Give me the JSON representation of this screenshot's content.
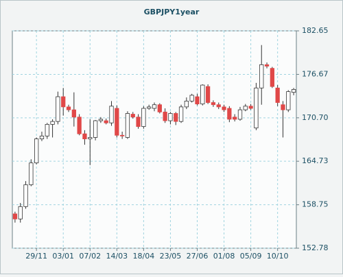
{
  "chart_data": {
    "type": "candlestick",
    "title": "GBPJPY1year",
    "categories": [
      null,
      null,
      null,
      null,
      "29/11",
      null,
      null,
      null,
      null,
      "03/01",
      null,
      null,
      null,
      null,
      "07/02",
      null,
      null,
      null,
      null,
      "14/03",
      null,
      null,
      null,
      null,
      "18/04",
      null,
      null,
      null,
      null,
      "23/05",
      null,
      null,
      null,
      null,
      "27/06",
      null,
      null,
      null,
      null,
      "01/08",
      null,
      null,
      null,
      null,
      "05/09",
      null,
      null,
      null,
      null,
      "10/10",
      null,
      null,
      null
    ],
    "series": [
      {
        "open": [
          157.5,
          156.8,
          158.5,
          161.5,
          164.5,
          167.8,
          168.2,
          169.8,
          170.2,
          173.6,
          172.2,
          171.8,
          170.8,
          168.5,
          167.8,
          168.0,
          170.3,
          170.3,
          170.0,
          172.0,
          168.3,
          168.0,
          171.2,
          170.8,
          169.5,
          172.0,
          172.0,
          172.5,
          171.5,
          170.3,
          171.3,
          170.2,
          172.2,
          173.0,
          173.6,
          172.6,
          175.0,
          172.8,
          172.5,
          172.2,
          172.0,
          170.8,
          170.5,
          171.8,
          172.3,
          169.3,
          174.8,
          178.0,
          177.5,
          174.8,
          172.5,
          171.8,
          174.2
        ],
        "high": [
          157.8,
          159.0,
          162.0,
          165.0,
          168.0,
          168.8,
          170.0,
          170.5,
          174.3,
          174.8,
          172.5,
          174.2,
          171.2,
          169.0,
          170.5,
          170.4,
          170.8,
          170.6,
          173.0,
          172.4,
          168.8,
          171.6,
          171.5,
          171.2,
          172.3,
          172.5,
          172.8,
          172.7,
          172.0,
          171.5,
          171.5,
          172.5,
          173.5,
          174.0,
          174.0,
          175.3,
          175.3,
          173.1,
          172.8,
          172.5,
          172.3,
          171.2,
          172.2,
          172.6,
          172.6,
          175.5,
          180.7,
          178.3,
          177.7,
          175.2,
          173.0,
          174.5,
          174.8
        ],
        "low": [
          156.3,
          156.3,
          158.2,
          161.3,
          164.3,
          167.5,
          167.8,
          168.0,
          169.8,
          171.0,
          171.5,
          169.5,
          168.3,
          167.0,
          164.2,
          167.6,
          170.0,
          169.8,
          169.6,
          168.0,
          167.8,
          167.8,
          170.6,
          169.2,
          169.2,
          171.8,
          171.6,
          171.3,
          170.0,
          169.8,
          169.7,
          170.0,
          171.9,
          172.8,
          172.4,
          172.4,
          172.6,
          172.2,
          171.9,
          171.5,
          170.1,
          170.2,
          170.3,
          171.6,
          171.8,
          169.0,
          172.5,
          177.5,
          174.8,
          172.3,
          168.0,
          171.5,
          173.8
        ],
        "close": [
          156.8,
          158.5,
          161.5,
          164.5,
          167.8,
          168.2,
          169.8,
          170.2,
          173.6,
          172.2,
          171.8,
          170.8,
          168.5,
          167.8,
          168.0,
          170.3,
          170.5,
          170.0,
          172.3,
          168.3,
          168.2,
          171.3,
          170.8,
          169.5,
          172.0,
          172.2,
          172.5,
          171.5,
          170.3,
          171.3,
          170.2,
          172.2,
          173.0,
          173.8,
          172.6,
          175.2,
          172.8,
          172.5,
          172.2,
          171.8,
          170.5,
          170.5,
          171.8,
          172.3,
          172.0,
          174.8,
          178.0,
          177.8,
          175.0,
          172.8,
          171.8,
          174.3,
          174.6
        ],
        "up_color": "#ffffff",
        "down_color": "#e04848"
      }
    ],
    "ylim": [
      152.78,
      182.65
    ],
    "yticks": [
      152.78,
      158.75,
      164.73,
      {
        "value": 170.7,
        "label": "170.70"
      },
      176.67,
      182.65
    ],
    "grid": true
  }
}
